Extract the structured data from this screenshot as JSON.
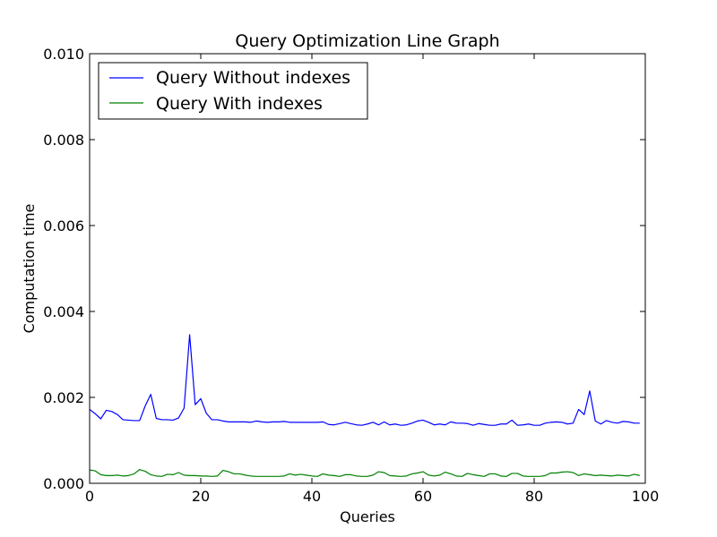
{
  "chart_data": {
    "type": "line",
    "title": "Query Optimization Line Graph",
    "xlabel": "Queries",
    "ylabel": "Computation time",
    "xlim": [
      0,
      100
    ],
    "ylim": [
      0,
      0.01
    ],
    "x_ticks": [
      0,
      20,
      40,
      60,
      80,
      100
    ],
    "x_tick_labels": [
      "0",
      "20",
      "40",
      "60",
      "80",
      "100"
    ],
    "y_ticks": [
      0,
      0.002,
      0.004,
      0.006,
      0.008,
      0.01
    ],
    "y_tick_labels": [
      "0.000",
      "0.002",
      "0.004",
      "0.006",
      "0.008",
      "0.010"
    ],
    "grid": false,
    "legend_position": "top-left",
    "x": [
      0,
      1,
      2,
      3,
      4,
      5,
      6,
      7,
      8,
      9,
      10,
      11,
      12,
      13,
      14,
      15,
      16,
      17,
      18,
      19,
      20,
      21,
      22,
      23,
      24,
      25,
      26,
      27,
      28,
      29,
      30,
      31,
      32,
      33,
      34,
      35,
      36,
      37,
      38,
      39,
      40,
      41,
      42,
      43,
      44,
      45,
      46,
      47,
      48,
      49,
      50,
      51,
      52,
      53,
      54,
      55,
      56,
      57,
      58,
      59,
      60,
      61,
      62,
      63,
      64,
      65,
      66,
      67,
      68,
      69,
      70,
      71,
      72,
      73,
      74,
      75,
      76,
      77,
      78,
      79,
      80,
      81,
      82,
      83,
      84,
      85,
      86,
      87,
      88,
      89,
      90,
      91,
      92,
      93,
      94,
      95,
      96,
      97,
      98,
      99
    ],
    "series": [
      {
        "name": "Query Without indexes",
        "color": "#0000ff",
        "values": [
          0.00172,
          0.00162,
          0.0015,
          0.0017,
          0.00167,
          0.0016,
          0.00148,
          0.00147,
          0.00146,
          0.00146,
          0.0018,
          0.00207,
          0.00151,
          0.00148,
          0.00148,
          0.00147,
          0.00152,
          0.00175,
          0.00346,
          0.00183,
          0.00197,
          0.00163,
          0.00148,
          0.00148,
          0.00145,
          0.00143,
          0.00143,
          0.00143,
          0.00143,
          0.00142,
          0.00145,
          0.00143,
          0.00142,
          0.00143,
          0.00143,
          0.00144,
          0.00142,
          0.00142,
          0.00142,
          0.00142,
          0.00142,
          0.00142,
          0.00143,
          0.00137,
          0.00136,
          0.00139,
          0.00142,
          0.00139,
          0.00136,
          0.00135,
          0.00138,
          0.00142,
          0.00136,
          0.00143,
          0.00136,
          0.00138,
          0.00135,
          0.00136,
          0.0014,
          0.00145,
          0.00147,
          0.00142,
          0.00136,
          0.00138,
          0.00136,
          0.00143,
          0.0014,
          0.0014,
          0.00139,
          0.00135,
          0.00139,
          0.00137,
          0.00135,
          0.00135,
          0.00138,
          0.00138,
          0.00147,
          0.00135,
          0.00136,
          0.00138,
          0.00135,
          0.00135,
          0.0014,
          0.00142,
          0.00143,
          0.00142,
          0.00138,
          0.0014,
          0.00172,
          0.0016,
          0.00215,
          0.00145,
          0.00138,
          0.00146,
          0.00142,
          0.0014,
          0.00144,
          0.00143,
          0.0014,
          0.0014
        ]
      },
      {
        "name": "Query With indexes",
        "color": "#008000",
        "values": [
          0.00031,
          0.00029,
          0.0002,
          0.00018,
          0.00018,
          0.00019,
          0.00017,
          0.00018,
          0.00022,
          0.00032,
          0.00028,
          0.0002,
          0.00017,
          0.00016,
          0.00021,
          0.0002,
          0.00025,
          0.00019,
          0.00018,
          0.00018,
          0.00017,
          0.00017,
          0.00016,
          0.00017,
          0.0003,
          0.00027,
          0.00022,
          0.00022,
          0.00019,
          0.00017,
          0.00016,
          0.00016,
          0.00016,
          0.00016,
          0.00016,
          0.00017,
          0.00022,
          0.00019,
          0.00021,
          0.00019,
          0.00017,
          0.00016,
          0.00022,
          0.00019,
          0.00018,
          0.00016,
          0.0002,
          0.0002,
          0.00017,
          0.00016,
          0.00016,
          0.00019,
          0.00027,
          0.00025,
          0.00018,
          0.00017,
          0.00016,
          0.00017,
          0.00022,
          0.00024,
          0.00027,
          0.00019,
          0.00017,
          0.00019,
          0.00026,
          0.00022,
          0.00017,
          0.00016,
          0.00023,
          0.0002,
          0.00018,
          0.00016,
          0.00022,
          0.00022,
          0.00017,
          0.00016,
          0.00023,
          0.00023,
          0.00017,
          0.00016,
          0.00016,
          0.00016,
          0.00018,
          0.00024,
          0.00024,
          0.00026,
          0.00027,
          0.00025,
          0.00018,
          0.00022,
          0.0002,
          0.00018,
          0.00019,
          0.00018,
          0.00017,
          0.00019,
          0.00018,
          0.00017,
          0.00021,
          0.00018
        ]
      }
    ]
  }
}
